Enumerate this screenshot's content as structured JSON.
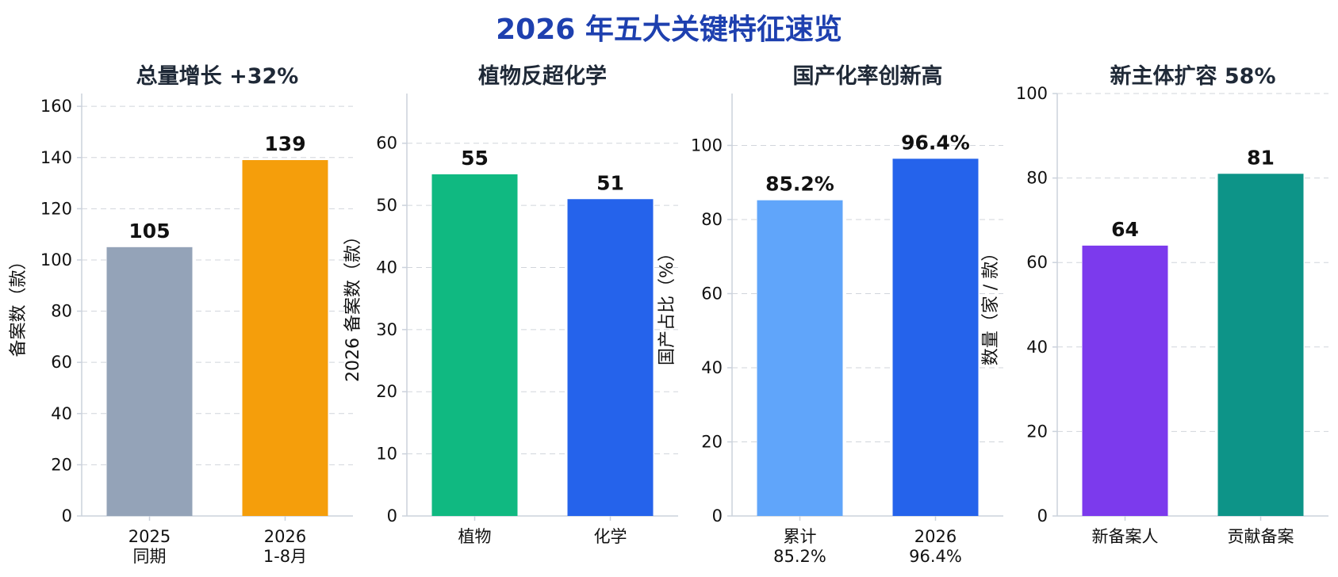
{
  "title": "2026 年五大关键特征速览",
  "chart_data": [
    {
      "type": "bar",
      "title": "总量增长 +32%",
      "ylabel": "备案数（款）",
      "ylim": [
        0,
        165
      ],
      "yticks": [
        0,
        20,
        40,
        60,
        80,
        100,
        120,
        140,
        160
      ],
      "categories": [
        [
          "2025",
          "同期"
        ],
        [
          "2026",
          "1-8月"
        ]
      ],
      "values": [
        105,
        139
      ],
      "value_labels": [
        "105",
        "139"
      ],
      "colors": [
        "#94a3b8",
        "#f59e0b"
      ],
      "grid": true
    },
    {
      "type": "bar",
      "title": "植物反超化学",
      "ylabel": "2026 备案数（款）",
      "ylim": [
        0,
        68
      ],
      "yticks": [
        0,
        10,
        20,
        30,
        40,
        50,
        60
      ],
      "categories": [
        [
          "植物"
        ],
        [
          "化学"
        ]
      ],
      "values": [
        55,
        51
      ],
      "value_labels": [
        "55",
        "51"
      ],
      "colors": [
        "#10b981",
        "#2563eb"
      ],
      "grid": true
    },
    {
      "type": "bar",
      "title": "国产化率创新高",
      "ylabel": "国产占比（%）",
      "ylim": [
        0,
        114
      ],
      "yticks": [
        0,
        20,
        40,
        60,
        80,
        100
      ],
      "categories": [
        [
          "累计",
          "85.2%"
        ],
        [
          "2026",
          "96.4%"
        ]
      ],
      "values": [
        85.2,
        96.4
      ],
      "value_labels": [
        "85.2%",
        "96.4%"
      ],
      "colors": [
        "#60a5fa",
        "#2563eb"
      ],
      "grid": true
    },
    {
      "type": "bar",
      "title": "新主体扩容 58%",
      "ylabel": "数量（家 / 款）",
      "ylim": [
        0,
        100
      ],
      "yticks": [
        0,
        20,
        40,
        60,
        80,
        100
      ],
      "categories": [
        [
          "新备案人"
        ],
        [
          "贡献备案"
        ]
      ],
      "values": [
        64,
        81
      ],
      "value_labels": [
        "64",
        "81"
      ],
      "colors": [
        "#7c3aed",
        "#0d9488"
      ],
      "grid": true
    }
  ]
}
